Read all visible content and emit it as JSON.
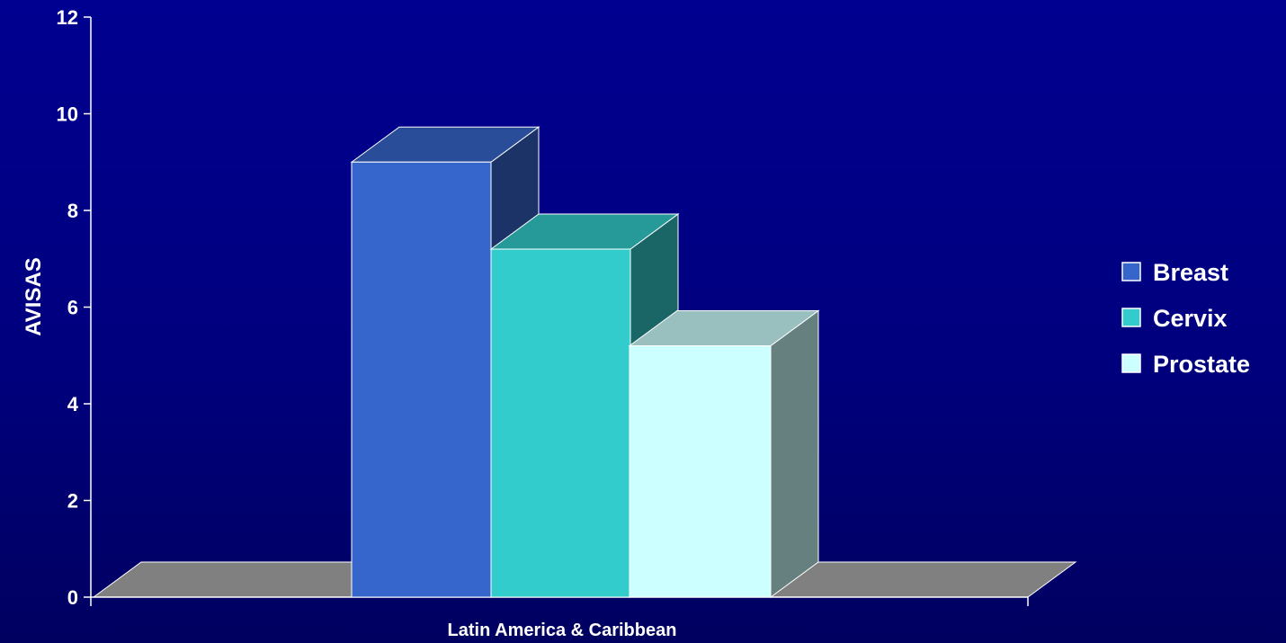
{
  "chart_data": {
    "type": "bar",
    "style": "3d-column",
    "categories": [
      "Latin America & Caribbean"
    ],
    "series": [
      {
        "name": "Breast",
        "values": [
          9
        ],
        "color": "#3666cc"
      },
      {
        "name": "Cervix",
        "values": [
          7.2
        ],
        "color": "#33cccc"
      },
      {
        "name": "Prostate",
        "values": [
          5.2
        ],
        "color": "#ccffff"
      }
    ],
    "ylabel": "AVISAS",
    "xlabel": "",
    "ylim": [
      0,
      12
    ],
    "yticks": [
      0,
      2,
      4,
      6,
      8,
      10,
      12
    ],
    "grid": false,
    "legend": "right",
    "floor_color": "#808080"
  }
}
